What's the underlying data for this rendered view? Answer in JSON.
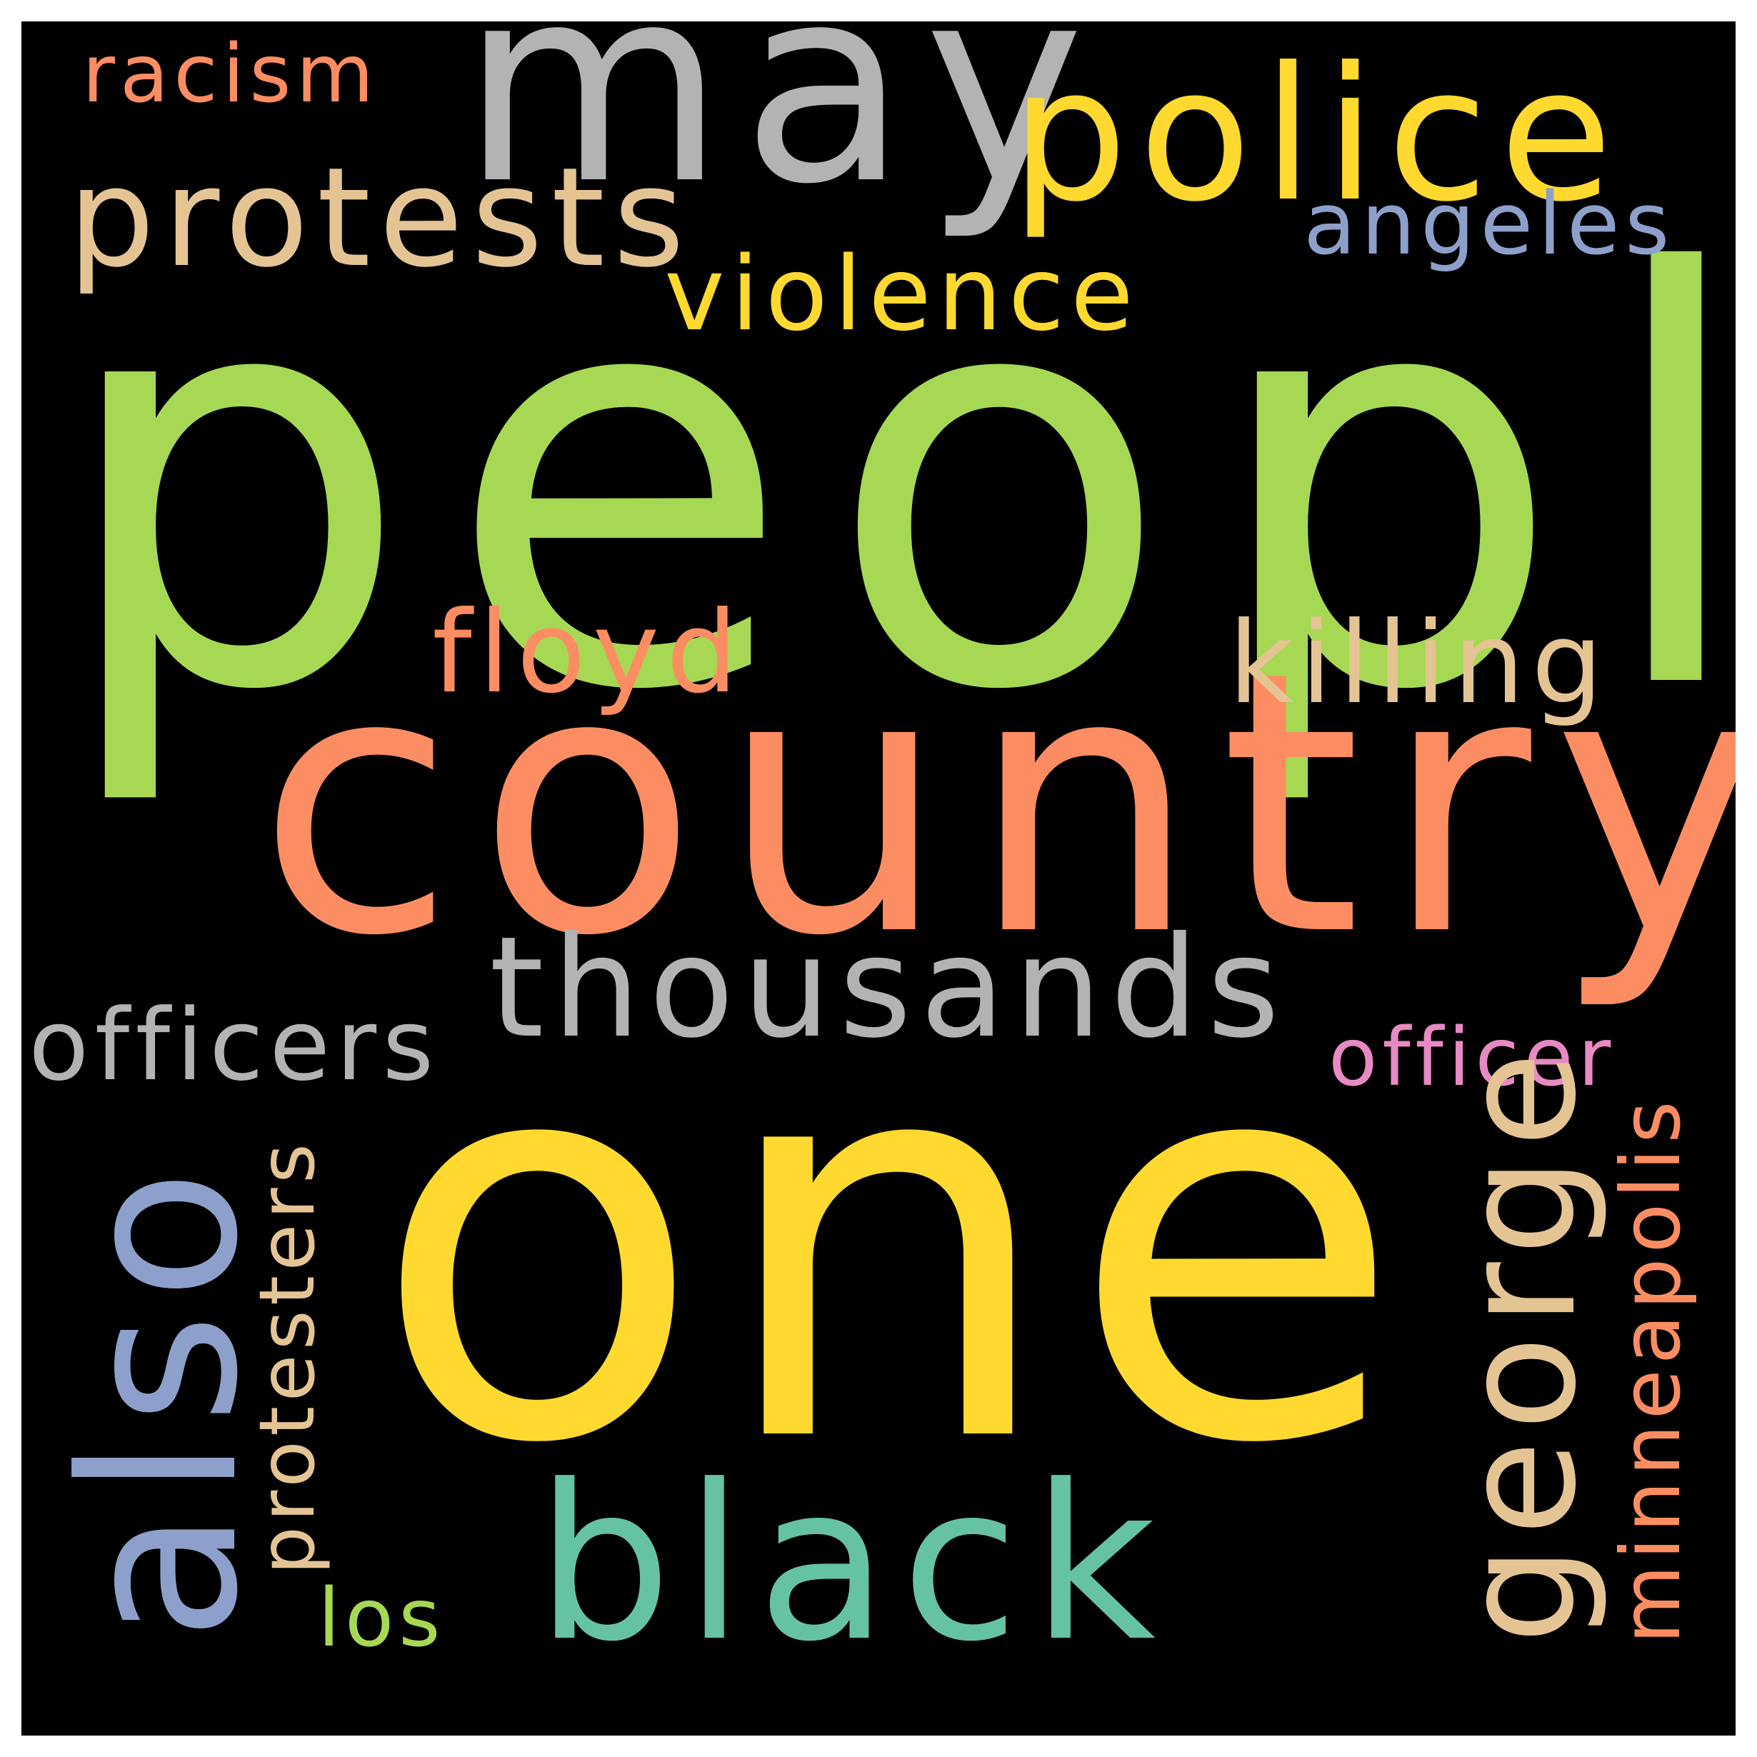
{
  "colors": {
    "background": "#000000",
    "frame": "#ffffff",
    "green": "#a6d854",
    "orange": "#fc8d62",
    "yellow": "#ffd92f",
    "gray": "#b3b3b3",
    "tan": "#e5c494",
    "blue": "#8da0cb",
    "teal": "#66c2a5",
    "pink": "#e78ac3"
  },
  "words": {
    "people": "people",
    "country": "country",
    "one": "one",
    "may": "may",
    "police": "police",
    "protests": "protests",
    "violence": "violence",
    "angeles": "angeles",
    "racism": "racism",
    "floyd": "floyd",
    "killing": "killing",
    "thousands": "thousands",
    "officers": "officers",
    "officer": "officer",
    "also": "also",
    "black": "black",
    "george": "george",
    "minneapolis": "minneapolis",
    "protesters": "protesters",
    "los": "los"
  }
}
